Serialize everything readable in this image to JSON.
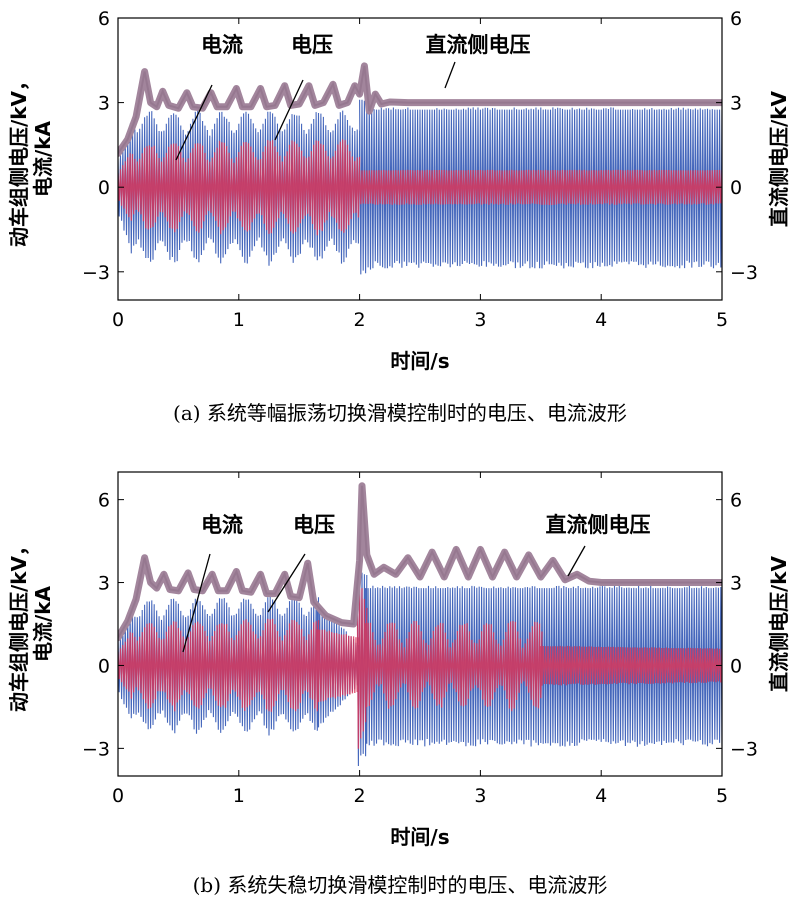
{
  "chart_data": [
    {
      "type": "line",
      "caption": "(a) 系统等幅振荡切换滑模控制时的电压、电流波形",
      "xlabel": "时间/s",
      "ylabel_left": [
        "动车组侧电压/kV，",
        "电流/kA"
      ],
      "ylabel_right": "直流侧电压/kV",
      "xlim": [
        0,
        5
      ],
      "ylim_left": [
        -4,
        6
      ],
      "ylim_right": [
        -4,
        6
      ],
      "xticks": [
        "0",
        "1",
        "2",
        "3",
        "4",
        "5"
      ],
      "yticks_left": [
        "6",
        "3",
        "0",
        "−3"
      ],
      "yticks_right": [
        "6",
        "3",
        "0",
        "−3"
      ],
      "annotations": [
        "电流",
        "电压",
        "直流侧电压"
      ],
      "series": [
        {
          "name": "电压",
          "color": "#3b5fb8",
          "segments": [
            {
              "x": [
                0,
                0.1
              ],
              "amp": [
                1.0,
                2.2
              ]
            },
            {
              "x": [
                0.1,
                2.0
              ],
              "amp": [
                2.25,
                2.25
              ],
              "mod": 0.2
            },
            {
              "x": [
                2.0,
                2.1
              ],
              "amp": [
                3.1,
                2.9
              ]
            },
            {
              "x": [
                2.1,
                5.0
              ],
              "amp": [
                2.75,
                2.75
              ]
            }
          ]
        },
        {
          "name": "电流",
          "color": "#d8365a",
          "segments": [
            {
              "x": [
                0,
                0.1
              ],
              "amp": [
                0.5,
                1.2
              ]
            },
            {
              "x": [
                0.1,
                2.0
              ],
              "amp": [
                1.2,
                1.3
              ],
              "mod": 0.35
            },
            {
              "x": [
                2.0,
                5.0
              ],
              "amp": [
                0.6,
                0.6
              ]
            }
          ]
        },
        {
          "name": "直流侧电压",
          "color": "#a2859c",
          "points": [
            [
              0,
              1.2
            ],
            [
              0.08,
              1.7
            ],
            [
              0.15,
              2.5
            ],
            [
              0.22,
              4.1
            ],
            [
              0.27,
              3.0
            ],
            [
              0.32,
              2.85
            ],
            [
              0.37,
              3.4
            ],
            [
              0.42,
              2.9
            ],
            [
              0.5,
              2.8
            ],
            [
              0.57,
              3.35
            ],
            [
              0.62,
              2.85
            ],
            [
              0.7,
              2.8
            ],
            [
              0.77,
              3.35
            ],
            [
              0.82,
              2.85
            ],
            [
              0.9,
              2.85
            ],
            [
              0.98,
              3.5
            ],
            [
              1.03,
              2.85
            ],
            [
              1.1,
              2.85
            ],
            [
              1.18,
              3.5
            ],
            [
              1.23,
              2.85
            ],
            [
              1.3,
              2.9
            ],
            [
              1.38,
              3.6
            ],
            [
              1.43,
              2.9
            ],
            [
              1.5,
              2.95
            ],
            [
              1.58,
              3.6
            ],
            [
              1.63,
              2.9
            ],
            [
              1.7,
              3.0
            ],
            [
              1.78,
              3.65
            ],
            [
              1.83,
              2.9
            ],
            [
              1.9,
              3.0
            ],
            [
              1.96,
              3.6
            ],
            [
              2.0,
              3.3
            ],
            [
              2.04,
              4.3
            ],
            [
              2.08,
              2.7
            ],
            [
              2.13,
              3.3
            ],
            [
              2.18,
              2.95
            ],
            [
              2.25,
              3.02
            ],
            [
              2.4,
              3.0
            ],
            [
              3.0,
              3.0
            ],
            [
              4.0,
              3.0
            ],
            [
              5.0,
              3.0
            ]
          ]
        }
      ]
    },
    {
      "type": "line",
      "caption": "(b) 系统失稳切换滑模控制时的电压、电流波形",
      "xlabel": "时间/s",
      "ylabel_left": [
        "动车组侧电压/kV，",
        "电流/kA"
      ],
      "ylabel_right": "直流侧电压/kV",
      "xlim": [
        0,
        5
      ],
      "ylim_left": [
        -4,
        7
      ],
      "ylim_right": [
        -4,
        7
      ],
      "xticks": [
        "0",
        "1",
        "2",
        "3",
        "4",
        "5"
      ],
      "yticks_left": [
        "6",
        "3",
        "0",
        "−3"
      ],
      "yticks_right": [
        "6",
        "3",
        "0",
        "−3"
      ],
      "annotations": [
        "电流",
        "电压",
        "直流侧电压"
      ],
      "series": [
        {
          "name": "电压",
          "color": "#3b5fb8",
          "segments": [
            {
              "x": [
                0,
                0.1
              ],
              "amp": [
                1.0,
                2.0
              ]
            },
            {
              "x": [
                0.1,
                1.65
              ],
              "amp": [
                2.0,
                2.1
              ],
              "mod": 0.2
            },
            {
              "x": [
                1.65,
                1.98
              ],
              "amp": [
                2.2,
                0.7
              ]
            },
            {
              "x": [
                1.98,
                2.05
              ],
              "amp": [
                3.5,
                3.2
              ]
            },
            {
              "x": [
                2.05,
                5.0
              ],
              "amp": [
                2.8,
                2.8
              ]
            }
          ]
        },
        {
          "name": "电流",
          "color": "#d8365a",
          "segments": [
            {
              "x": [
                0,
                0.1
              ],
              "amp": [
                0.5,
                1.1
              ]
            },
            {
              "x": [
                0.1,
                1.65
              ],
              "amp": [
                1.2,
                1.3
              ],
              "mod": 0.35
            },
            {
              "x": [
                1.65,
                1.98
              ],
              "amp": [
                1.3,
                1.0
              ]
            },
            {
              "x": [
                1.98,
                2.05
              ],
              "amp": [
                3.0,
                2.0
              ]
            },
            {
              "x": [
                2.05,
                3.5
              ],
              "amp": [
                1.1,
                1.1
              ],
              "mod": 0.5
            },
            {
              "x": [
                3.5,
                5.0
              ],
              "amp": [
                0.7,
                0.6
              ]
            }
          ]
        },
        {
          "name": "直流侧电压",
          "color": "#a2859c",
          "points": [
            [
              0,
              1.0
            ],
            [
              0.08,
              1.6
            ],
            [
              0.15,
              2.4
            ],
            [
              0.22,
              3.9
            ],
            [
              0.27,
              3.0
            ],
            [
              0.32,
              2.8
            ],
            [
              0.38,
              3.3
            ],
            [
              0.43,
              2.75
            ],
            [
              0.5,
              2.7
            ],
            [
              0.58,
              3.35
            ],
            [
              0.63,
              2.75
            ],
            [
              0.7,
              2.7
            ],
            [
              0.78,
              3.3
            ],
            [
              0.83,
              2.7
            ],
            [
              0.9,
              2.7
            ],
            [
              0.98,
              3.4
            ],
            [
              1.03,
              2.7
            ],
            [
              1.1,
              2.65
            ],
            [
              1.18,
              3.3
            ],
            [
              1.23,
              2.6
            ],
            [
              1.3,
              2.6
            ],
            [
              1.38,
              3.3
            ],
            [
              1.43,
              2.5
            ],
            [
              1.5,
              2.45
            ],
            [
              1.57,
              3.7
            ],
            [
              1.62,
              2.3
            ],
            [
              1.72,
              1.8
            ],
            [
              1.85,
              1.55
            ],
            [
              1.95,
              1.5
            ],
            [
              2.0,
              3.8
            ],
            [
              2.02,
              6.5
            ],
            [
              2.06,
              4.0
            ],
            [
              2.12,
              3.3
            ],
            [
              2.2,
              3.55
            ],
            [
              2.3,
              3.3
            ],
            [
              2.4,
              3.9
            ],
            [
              2.5,
              3.2
            ],
            [
              2.6,
              4.1
            ],
            [
              2.7,
              3.2
            ],
            [
              2.8,
              4.2
            ],
            [
              2.9,
              3.2
            ],
            [
              3.0,
              4.2
            ],
            [
              3.1,
              3.2
            ],
            [
              3.2,
              4.1
            ],
            [
              3.3,
              3.2
            ],
            [
              3.4,
              4.0
            ],
            [
              3.5,
              3.2
            ],
            [
              3.6,
              3.8
            ],
            [
              3.7,
              3.1
            ],
            [
              3.8,
              3.3
            ],
            [
              3.9,
              3.05
            ],
            [
              4.0,
              3.0
            ],
            [
              4.5,
              3.0
            ],
            [
              5.0,
              3.0
            ]
          ]
        }
      ]
    }
  ]
}
